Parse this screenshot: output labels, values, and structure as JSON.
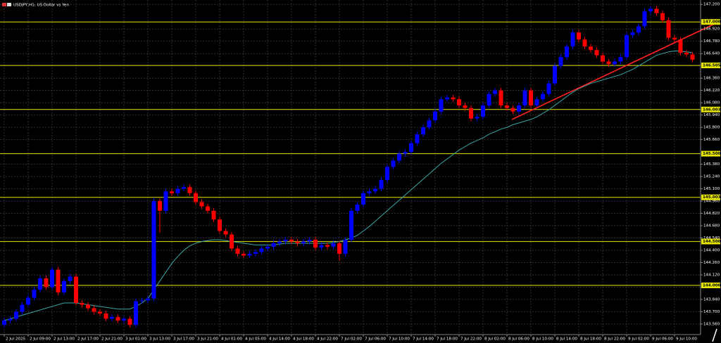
{
  "chart_data": {
    "type": "candlestick",
    "title": "USDJPY,H1: US Dollar vs Yen",
    "up_color": "#0000ff",
    "down_color": "#ff0000",
    "grid": true,
    "ylim": [
      143.44,
      147.25
    ],
    "yticks": [
      {
        "value": 147.2,
        "label": "147.200"
      },
      {
        "value": 146.92,
        "label": "146.920"
      },
      {
        "value": 146.78,
        "label": "146.780"
      },
      {
        "value": 146.64,
        "label": "146.640"
      },
      {
        "value": 146.36,
        "label": "146.360"
      },
      {
        "value": 146.22,
        "label": "146.220"
      },
      {
        "value": 146.08,
        "label": "146.080"
      },
      {
        "value": 145.94,
        "label": "145.940"
      },
      {
        "value": 145.8,
        "label": "145.800"
      },
      {
        "value": 145.66,
        "label": "145.660"
      },
      {
        "value": 145.38,
        "label": "145.380"
      },
      {
        "value": 145.24,
        "label": "145.240"
      },
      {
        "value": 145.1,
        "label": "145.100"
      },
      {
        "value": 144.96,
        "label": "144.960"
      },
      {
        "value": 144.82,
        "label": "144.820"
      },
      {
        "value": 144.68,
        "label": "144.680"
      },
      {
        "value": 144.54,
        "label": "144.540"
      },
      {
        "value": 144.4,
        "label": "144.400"
      },
      {
        "value": 144.26,
        "label": "144.260"
      },
      {
        "value": 144.12,
        "label": "144.120"
      },
      {
        "value": 143.98,
        "label": "143.980"
      },
      {
        "value": 143.84,
        "label": "143.840"
      },
      {
        "value": 143.7,
        "label": "143.700"
      },
      {
        "value": 143.56,
        "label": "143.560"
      }
    ],
    "levels": {
      "color": "#e6e600",
      "items": [
        {
          "value": 147.0,
          "label": "147.000"
        },
        {
          "value": 146.505,
          "label": "146.505"
        },
        {
          "value": 146.003,
          "label": "146.003"
        },
        {
          "value": 145.5,
          "label": "145.500"
        },
        {
          "value": 145.003,
          "label": "145.003"
        },
        {
          "value": 144.5,
          "label": "144.500"
        },
        {
          "value": 144.0,
          "label": "144.000"
        }
      ]
    },
    "categories": [
      "2 Jul 2025",
      null,
      null,
      null,
      "2 Jul 09:00",
      null,
      null,
      null,
      "2 Jul 13:00",
      null,
      null,
      null,
      "2 Jul 17:00",
      null,
      null,
      null,
      "2 Jul 21:00",
      null,
      null,
      null,
      "3 Jul 01:00",
      null,
      null,
      null,
      "3 Jul 13:00",
      null,
      null,
      null,
      "3 Jul 17:00",
      null,
      null,
      null,
      "3 Jul 21:00",
      null,
      null,
      null,
      "4 Jul 01:00",
      null,
      null,
      null,
      "4 Jul 05:00",
      null,
      null,
      null,
      "4 Jul 14:00",
      null,
      null,
      null,
      "4 Jul 18:00",
      null,
      null,
      null,
      "4 Jul 22:00",
      null,
      null,
      null,
      "7 Jul 02:00",
      null,
      null,
      null,
      "7 Jul 06:00",
      null,
      null,
      null,
      "7 Jul 10:00",
      null,
      null,
      null,
      "7 Jul 14:00",
      null,
      null,
      null,
      "7 Jul 18:00",
      null,
      null,
      null,
      "7 Jul 22:00",
      null,
      null,
      null,
      "8 Jul 02:00",
      null,
      null,
      null,
      "8 Jul 06:00",
      null,
      null,
      null,
      "8 Jul 10:00",
      null,
      null,
      null,
      "8 Jul 14:00",
      null,
      null,
      null,
      "8 Jul 18:00",
      null,
      null,
      null,
      "8 Jul 22:00",
      null,
      null,
      null,
      "9 Jul 02:00",
      null,
      null,
      null,
      "9 Jul 06:00",
      null,
      null,
      null,
      "9 Jul 10:00",
      null,
      null,
      null
    ],
    "ohlc": [
      [
        143.55,
        143.63,
        143.52,
        143.6
      ],
      [
        143.6,
        143.65,
        143.57,
        143.62
      ],
      [
        143.62,
        143.73,
        143.59,
        143.7
      ],
      [
        143.7,
        143.81,
        143.67,
        143.78
      ],
      [
        143.78,
        143.89,
        143.75,
        143.86
      ],
      [
        143.86,
        143.98,
        143.83,
        143.95
      ],
      [
        143.95,
        144.11,
        143.92,
        144.08
      ],
      [
        144.08,
        144.11,
        143.95,
        143.98
      ],
      [
        143.98,
        144.21,
        143.95,
        144.18
      ],
      [
        144.18,
        144.21,
        143.89,
        143.92
      ],
      [
        143.92,
        144.08,
        143.89,
        144.05
      ],
      [
        144.05,
        144.13,
        144.02,
        144.1
      ],
      [
        144.1,
        144.13,
        143.77,
        143.8
      ],
      [
        143.8,
        143.83,
        143.75,
        143.78
      ],
      [
        143.78,
        143.81,
        143.71,
        143.74
      ],
      [
        143.74,
        143.77,
        143.67,
        143.7
      ],
      [
        143.7,
        143.73,
        143.65,
        143.68
      ],
      [
        143.68,
        143.71,
        143.59,
        143.62
      ],
      [
        143.62,
        143.67,
        143.59,
        143.64
      ],
      [
        143.64,
        143.67,
        143.57,
        143.6
      ],
      [
        143.6,
        143.65,
        143.57,
        143.62
      ],
      [
        143.62,
        143.65,
        143.52,
        143.55
      ],
      [
        143.55,
        143.85,
        143.52,
        143.82
      ],
      [
        143.82,
        143.86,
        143.79,
        143.83
      ],
      [
        143.83,
        143.88,
        143.8,
        143.85
      ],
      [
        143.85,
        145.0,
        143.82,
        144.96
      ],
      [
        144.96,
        144.99,
        144.6,
        144.85
      ],
      [
        144.85,
        145.1,
        144.82,
        145.07
      ],
      [
        145.07,
        145.1,
        145.02,
        145.05
      ],
      [
        145.05,
        145.13,
        145.02,
        145.1
      ],
      [
        145.1,
        145.15,
        145.07,
        145.12
      ],
      [
        145.12,
        145.15,
        145.02,
        145.05
      ],
      [
        145.05,
        145.08,
        144.92,
        144.95
      ],
      [
        144.95,
        144.98,
        144.87,
        144.9
      ],
      [
        144.9,
        144.93,
        144.82,
        144.85
      ],
      [
        144.85,
        144.88,
        144.72,
        144.75
      ],
      [
        144.75,
        144.78,
        144.59,
        144.62
      ],
      [
        144.62,
        144.65,
        144.55,
        144.58
      ],
      [
        144.58,
        144.61,
        144.39,
        144.42
      ],
      [
        144.42,
        144.45,
        144.33,
        144.36
      ],
      [
        144.36,
        144.39,
        144.31,
        144.34
      ],
      [
        144.34,
        144.39,
        144.31,
        144.36
      ],
      [
        144.36,
        144.41,
        144.33,
        144.38
      ],
      [
        144.38,
        144.45,
        144.35,
        144.42
      ],
      [
        144.42,
        144.47,
        144.39,
        144.44
      ],
      [
        144.44,
        144.51,
        144.41,
        144.48
      ],
      [
        144.48,
        144.53,
        144.45,
        144.5
      ],
      [
        144.5,
        144.55,
        144.47,
        144.52
      ],
      [
        144.52,
        144.55,
        144.47,
        144.5
      ],
      [
        144.5,
        144.53,
        144.45,
        144.48
      ],
      [
        144.48,
        144.53,
        144.45,
        144.5
      ],
      [
        144.5,
        144.55,
        144.47,
        144.52
      ],
      [
        144.52,
        144.55,
        144.4,
        144.43
      ],
      [
        144.43,
        144.49,
        144.4,
        144.46
      ],
      [
        144.46,
        144.49,
        144.41,
        144.44
      ],
      [
        144.44,
        144.51,
        144.41,
        144.48
      ],
      [
        144.48,
        144.51,
        144.28,
        144.36
      ],
      [
        144.36,
        144.55,
        144.33,
        144.52
      ],
      [
        144.52,
        144.88,
        144.49,
        144.85
      ],
      [
        144.85,
        144.95,
        144.82,
        144.92
      ],
      [
        144.92,
        145.08,
        144.89,
        145.05
      ],
      [
        145.05,
        145.1,
        145.02,
        145.07
      ],
      [
        145.07,
        145.13,
        145.04,
        145.1
      ],
      [
        145.1,
        145.23,
        145.07,
        145.2
      ],
      [
        145.2,
        145.38,
        145.17,
        145.35
      ],
      [
        145.35,
        145.45,
        145.32,
        145.42
      ],
      [
        145.42,
        145.53,
        145.39,
        145.5
      ],
      [
        145.5,
        145.55,
        145.47,
        145.52
      ],
      [
        145.52,
        145.65,
        145.49,
        145.62
      ],
      [
        145.62,
        145.75,
        145.59,
        145.72
      ],
      [
        145.72,
        145.83,
        145.69,
        145.8
      ],
      [
        145.8,
        145.91,
        145.77,
        145.88
      ],
      [
        145.88,
        146.01,
        145.85,
        145.98
      ],
      [
        145.98,
        146.15,
        145.95,
        146.12
      ],
      [
        146.12,
        146.17,
        146.09,
        146.14
      ],
      [
        146.14,
        146.17,
        146.09,
        146.12
      ],
      [
        146.12,
        146.15,
        146.02,
        146.05
      ],
      [
        146.05,
        146.08,
        145.99,
        146.02
      ],
      [
        146.02,
        146.05,
        145.87,
        145.9
      ],
      [
        145.9,
        145.95,
        145.87,
        145.92
      ],
      [
        145.92,
        146.08,
        145.89,
        146.05
      ],
      [
        146.05,
        146.21,
        146.02,
        146.18
      ],
      [
        146.18,
        146.25,
        146.15,
        146.22
      ],
      [
        146.22,
        146.25,
        146.02,
        146.05
      ],
      [
        146.05,
        146.08,
        145.99,
        146.02
      ],
      [
        146.02,
        146.05,
        145.95,
        145.98
      ],
      [
        145.98,
        146.08,
        145.95,
        146.05
      ],
      [
        146.05,
        146.25,
        146.02,
        146.22
      ],
      [
        146.22,
        146.25,
        146.02,
        146.05
      ],
      [
        146.05,
        146.15,
        146.02,
        146.12
      ],
      [
        146.12,
        146.21,
        146.09,
        146.18
      ],
      [
        146.18,
        146.33,
        146.15,
        146.3
      ],
      [
        146.3,
        146.53,
        146.27,
        146.5
      ],
      [
        146.5,
        146.63,
        146.47,
        146.6
      ],
      [
        146.6,
        146.75,
        146.57,
        146.72
      ],
      [
        146.72,
        146.91,
        146.69,
        146.88
      ],
      [
        146.88,
        146.91,
        146.77,
        146.8
      ],
      [
        146.8,
        146.83,
        146.69,
        146.72
      ],
      [
        146.72,
        146.75,
        146.65,
        146.68
      ],
      [
        146.68,
        146.71,
        146.59,
        146.62
      ],
      [
        146.62,
        146.65,
        146.52,
        146.55
      ],
      [
        146.55,
        146.58,
        146.49,
        146.52
      ],
      [
        146.52,
        146.58,
        146.49,
        146.55
      ],
      [
        146.55,
        146.63,
        146.52,
        146.6
      ],
      [
        146.6,
        146.88,
        146.57,
        146.85
      ],
      [
        146.85,
        146.91,
        146.82,
        146.88
      ],
      [
        146.88,
        146.98,
        146.85,
        146.95
      ],
      [
        146.95,
        147.15,
        146.92,
        147.12
      ],
      [
        147.12,
        147.18,
        147.09,
        147.15
      ],
      [
        147.15,
        147.18,
        147.07,
        147.1
      ],
      [
        147.1,
        147.13,
        146.99,
        147.02
      ],
      [
        147.02,
        147.05,
        146.79,
        146.82
      ],
      [
        146.82,
        146.85,
        146.77,
        146.8
      ],
      [
        146.8,
        146.83,
        146.62,
        146.65
      ],
      [
        146.65,
        146.68,
        146.6,
        146.63
      ],
      [
        146.63,
        146.66,
        146.54,
        146.57
      ]
    ],
    "ma": {
      "color": "#3aa6a6",
      "values": [
        143.6,
        143.62,
        143.64,
        143.66,
        143.68,
        143.7,
        143.72,
        143.74,
        143.76,
        143.78,
        143.8,
        143.8,
        143.8,
        143.79,
        143.78,
        143.77,
        143.76,
        143.75,
        143.74,
        143.73,
        143.73,
        143.73,
        143.76,
        143.8,
        143.85,
        143.95,
        144.05,
        144.15,
        144.25,
        144.33,
        144.4,
        144.45,
        144.48,
        144.5,
        144.51,
        144.52,
        144.52,
        144.51,
        144.5,
        144.49,
        144.48,
        144.47,
        144.46,
        144.46,
        144.46,
        144.46,
        144.47,
        144.48,
        144.48,
        144.48,
        144.48,
        144.48,
        144.48,
        144.48,
        144.48,
        144.49,
        144.5,
        144.52,
        144.54,
        144.57,
        144.62,
        144.67,
        144.73,
        144.79,
        144.85,
        144.91,
        144.97,
        145.03,
        145.09,
        145.15,
        145.21,
        145.27,
        145.33,
        145.39,
        145.44,
        145.49,
        145.54,
        145.58,
        145.62,
        145.65,
        145.68,
        145.72,
        145.75,
        145.78,
        145.8,
        145.83,
        145.85,
        145.87,
        145.89,
        145.92,
        145.96,
        146.0,
        146.05,
        146.1,
        146.15,
        146.2,
        146.24,
        146.27,
        146.3,
        146.32,
        146.34,
        146.36,
        146.38,
        146.4,
        146.43,
        146.46,
        146.5,
        146.54,
        146.58,
        146.62,
        146.64,
        146.66,
        146.67,
        146.67,
        146.66,
        146.65
      ]
    }
  }
}
